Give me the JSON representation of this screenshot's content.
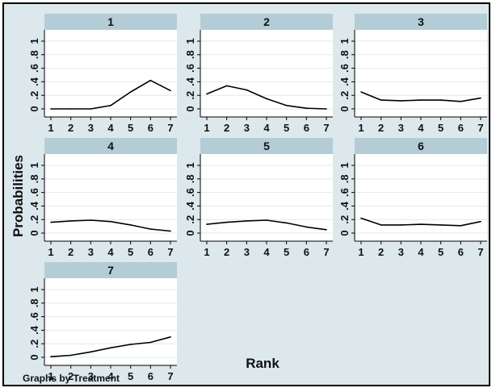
{
  "chart_data": {
    "type": "line",
    "facet_label": "Treatment",
    "xlabel": "Rank",
    "ylabel": "Probabilities",
    "note": "Graphs by Treatment",
    "x_ticks": [
      "1",
      "2",
      "3",
      "4",
      "5",
      "6",
      "7"
    ],
    "y_ticks": [
      "0",
      ".2",
      ".4",
      ".6",
      ".8",
      "1"
    ],
    "xlim": [
      1,
      7
    ],
    "ylim": [
      0,
      1
    ],
    "grid": true,
    "line_color": "#000000",
    "panels": [
      {
        "title": "1",
        "x": [
          1,
          2,
          3,
          4,
          5,
          6,
          7
        ],
        "y": [
          0.0,
          0.0,
          0.0,
          0.05,
          0.25,
          0.42,
          0.27
        ]
      },
      {
        "title": "2",
        "x": [
          1,
          2,
          3,
          4,
          5,
          6,
          7
        ],
        "y": [
          0.22,
          0.34,
          0.28,
          0.15,
          0.05,
          0.01,
          0.0
        ]
      },
      {
        "title": "3",
        "x": [
          1,
          2,
          3,
          4,
          5,
          6,
          7
        ],
        "y": [
          0.25,
          0.13,
          0.12,
          0.13,
          0.13,
          0.11,
          0.16
        ]
      },
      {
        "title": "4",
        "x": [
          1,
          2,
          3,
          4,
          5,
          6,
          7
        ],
        "y": [
          0.16,
          0.18,
          0.19,
          0.17,
          0.12,
          0.06,
          0.03
        ]
      },
      {
        "title": "5",
        "x": [
          1,
          2,
          3,
          4,
          5,
          6,
          7
        ],
        "y": [
          0.13,
          0.16,
          0.18,
          0.19,
          0.15,
          0.09,
          0.05
        ]
      },
      {
        "title": "6",
        "x": [
          1,
          2,
          3,
          4,
          5,
          6,
          7
        ],
        "y": [
          0.22,
          0.12,
          0.12,
          0.13,
          0.12,
          0.11,
          0.17
        ]
      },
      {
        "title": "7",
        "x": [
          1,
          2,
          3,
          4,
          5,
          6,
          7
        ],
        "y": [
          0.01,
          0.03,
          0.08,
          0.14,
          0.19,
          0.22,
          0.3
        ]
      }
    ]
  }
}
